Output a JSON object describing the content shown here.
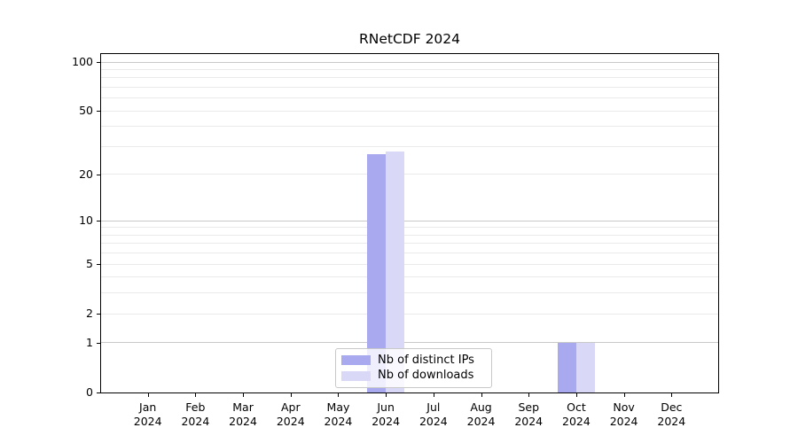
{
  "figure": {
    "title": "RNetCDF 2024",
    "background": "#ffffff"
  },
  "chart_data": {
    "type": "bar",
    "title": "RNetCDF 2024",
    "categories": [
      "Jan",
      "Feb",
      "Mar",
      "Apr",
      "May",
      "Jun",
      "Jul",
      "Aug",
      "Sep",
      "Oct",
      "Nov",
      "Dec"
    ],
    "category_year": "2024",
    "series": [
      {
        "name": "Nb of distinct IPs",
        "color": "#a9a9ef",
        "values": [
          0,
          0,
          0,
          0,
          0,
          27,
          0,
          0,
          0,
          1,
          0,
          0
        ]
      },
      {
        "name": "Nb of downloads",
        "color": "#d9d9f7",
        "values": [
          0,
          0,
          0,
          0,
          0,
          28,
          0,
          0,
          0,
          1,
          0,
          0
        ]
      }
    ],
    "yscale": "log1p",
    "ylim": [
      0,
      100
    ],
    "yticks": [
      0,
      1,
      2,
      5,
      10,
      20,
      50,
      100
    ],
    "gridlines_major": [
      1,
      10,
      100
    ],
    "gridlines_minor": [
      2,
      3,
      4,
      5,
      6,
      7,
      8,
      9,
      20,
      30,
      40,
      50,
      60,
      70,
      80,
      90
    ],
    "grid": true,
    "legend_position": "lower-center-inside",
    "colors": {
      "major_grid": "#c8c8c8",
      "minor_grid": "#eaeaea",
      "axis": "#000000",
      "text": "#000000"
    }
  }
}
